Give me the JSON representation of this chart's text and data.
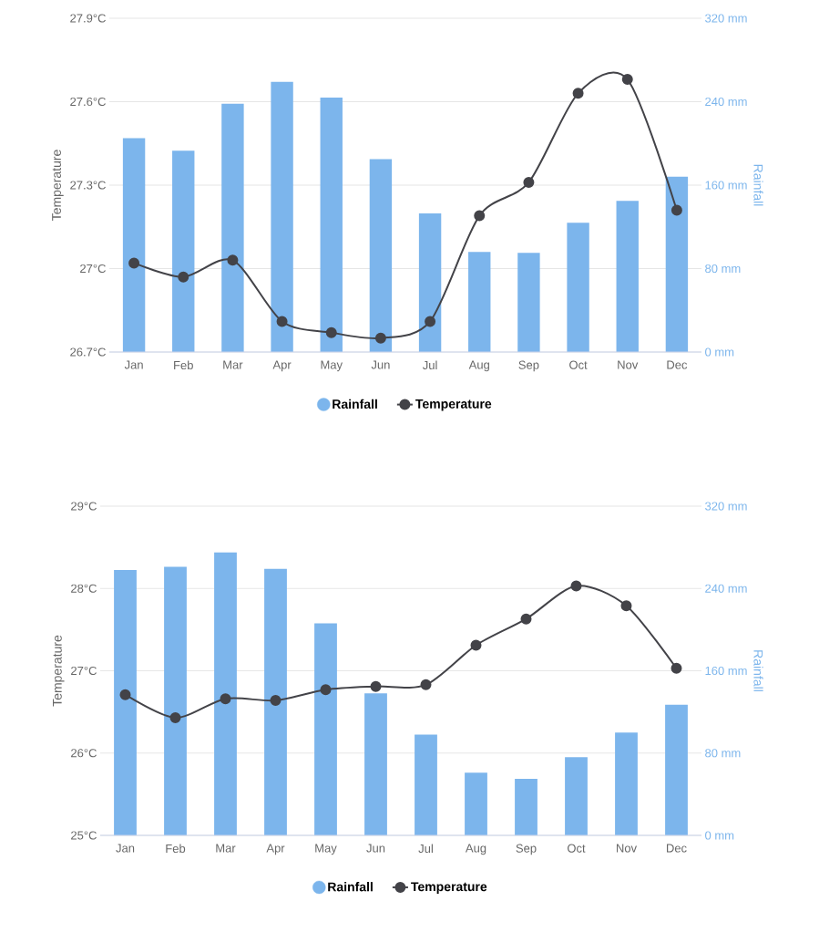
{
  "chart_data": [
    {
      "type": "bar",
      "categories": [
        "Jan",
        "Feb",
        "Mar",
        "Apr",
        "May",
        "Jun",
        "Jul",
        "Aug",
        "Sep",
        "Oct",
        "Nov",
        "Dec"
      ],
      "series": [
        {
          "name": "Rainfall",
          "axis": "y2",
          "color": "#7cb5ec",
          "values": [
            205,
            193,
            238,
            259,
            244,
            185,
            133,
            96,
            95,
            124,
            145,
            168
          ]
        },
        {
          "name": "Temperature",
          "type": "line",
          "color": "#434348",
          "values": [
            27.02,
            26.97,
            27.03,
            26.81,
            26.77,
            26.75,
            26.81,
            27.19,
            27.31,
            27.63,
            27.68,
            27.21
          ]
        }
      ],
      "ylabel": "Temperature",
      "y2label": "Rainfall",
      "ylim": [
        26.7,
        27.9
      ],
      "yticks": [
        {
          "value": 26.7,
          "label": "26.7°C"
        },
        {
          "value": 27.0,
          "label": "27°C"
        },
        {
          "value": 27.3,
          "label": "27.3°C"
        },
        {
          "value": 27.6,
          "label": "27.6°C"
        },
        {
          "value": 27.9,
          "label": "27.9°C"
        }
      ],
      "y2lim": [
        0,
        320
      ],
      "y2ticks": [
        {
          "value": 0,
          "label": "0 mm"
        },
        {
          "value": 80,
          "label": "80 mm"
        },
        {
          "value": 160,
          "label": "160 mm"
        },
        {
          "value": 240,
          "label": "240 mm"
        },
        {
          "value": 320,
          "label": "320 mm"
        }
      ],
      "grid": "y",
      "legend": "bottom",
      "marker": "circle"
    },
    {
      "type": "bar",
      "categories": [
        "Jan",
        "Feb",
        "Mar",
        "Apr",
        "May",
        "Jun",
        "Jul",
        "Aug",
        "Sep",
        "Oct",
        "Nov",
        "Dec"
      ],
      "series": [
        {
          "name": "Rainfall",
          "axis": "y2",
          "color": "#7cb5ec",
          "values": [
            258,
            261,
            275,
            259,
            206,
            138,
            98,
            61,
            55,
            76,
            100,
            127
          ]
        },
        {
          "name": "Temperature",
          "type": "line",
          "color": "#434348",
          "values": [
            26.71,
            26.43,
            26.66,
            26.64,
            26.77,
            26.81,
            26.83,
            27.31,
            27.63,
            28.03,
            27.79,
            27.03
          ]
        }
      ],
      "ylabel": "Temperature",
      "y2label": "Rainfall",
      "ylim": [
        25,
        29
      ],
      "yticks": [
        {
          "value": 25,
          "label": "25°C"
        },
        {
          "value": 26,
          "label": "26°C"
        },
        {
          "value": 27,
          "label": "27°C"
        },
        {
          "value": 28,
          "label": "28°C"
        },
        {
          "value": 29,
          "label": "29°C"
        }
      ],
      "y2lim": [
        0,
        320
      ],
      "y2ticks": [
        {
          "value": 0,
          "label": "0 mm"
        },
        {
          "value": 80,
          "label": "80 mm"
        },
        {
          "value": 160,
          "label": "160 mm"
        },
        {
          "value": 240,
          "label": "240 mm"
        },
        {
          "value": 320,
          "label": "320 mm"
        }
      ],
      "grid": "y",
      "legend": "bottom",
      "marker": "circle"
    }
  ]
}
